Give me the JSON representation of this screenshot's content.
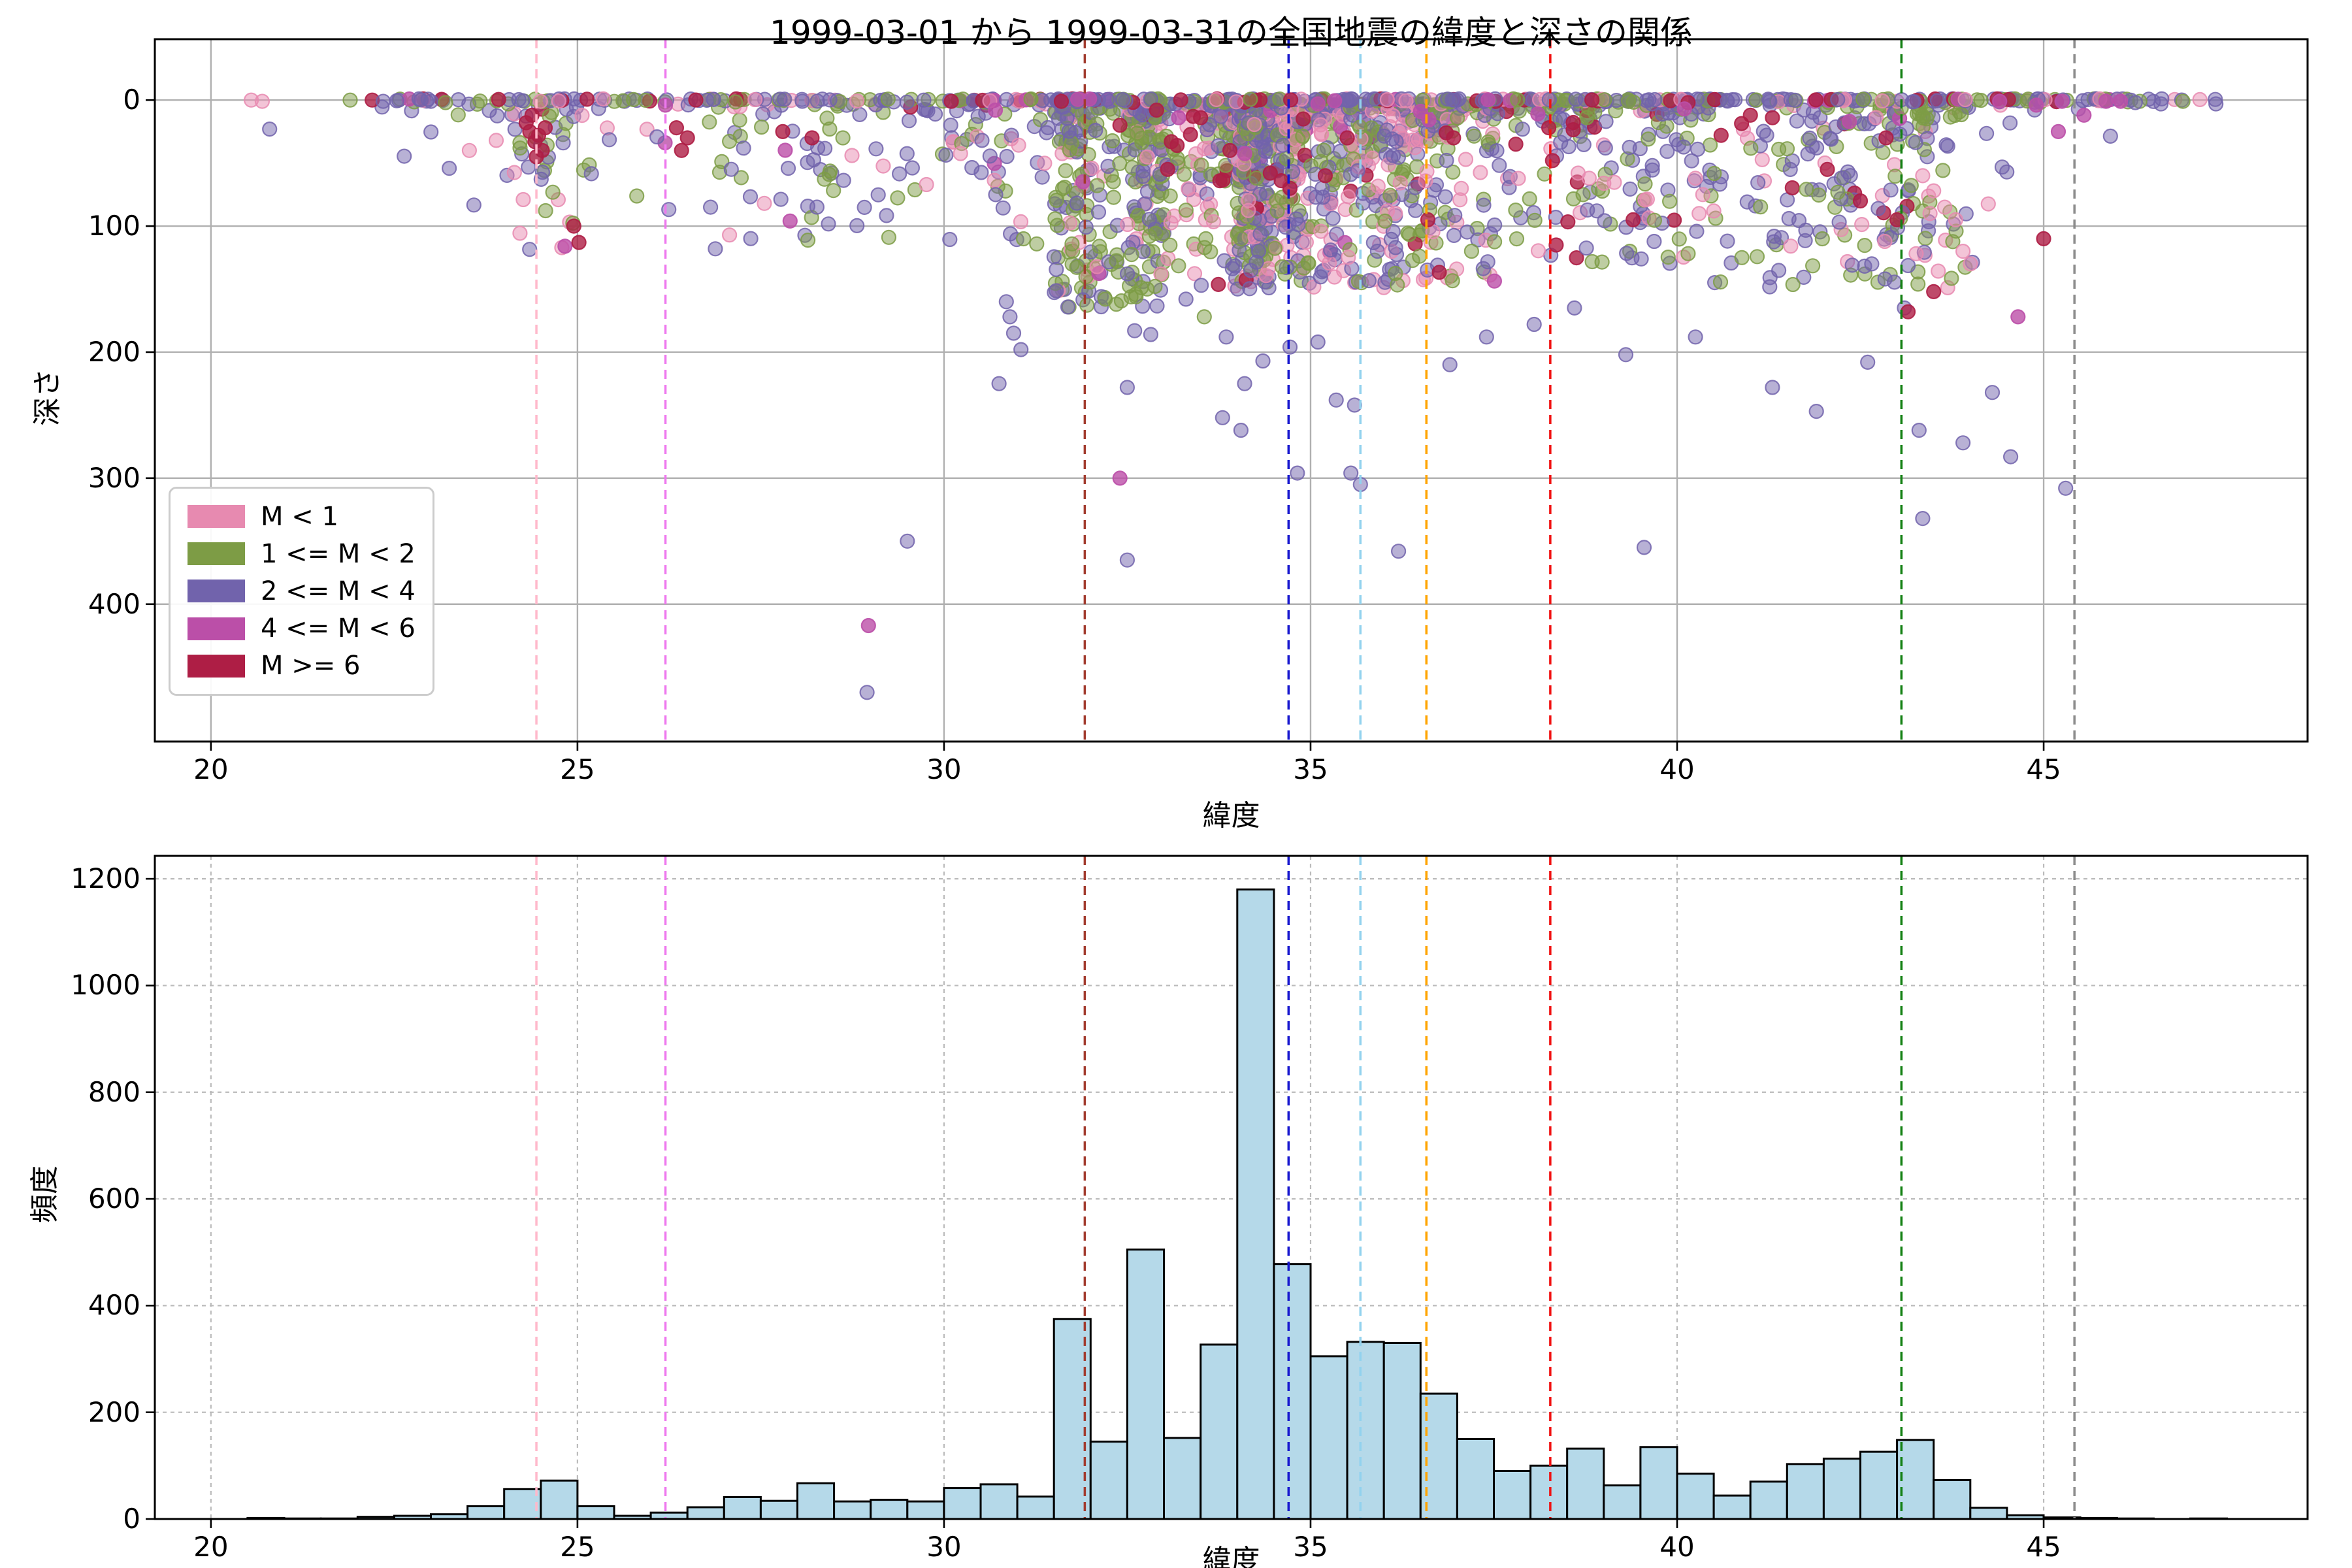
{
  "title": "1999-03-01 から 1999-03-31の全国地震の緯度と深さの関係",
  "axis": {
    "xlabel": "緯度",
    "ylabel_top": "深さ",
    "ylabel_bottom": "頻度"
  },
  "legend": {
    "items": [
      {
        "label": "M < 1",
        "key": "k",
        "color": "#e78ab0"
      },
      {
        "label": "1 <= M < 2",
        "key": "o",
        "color": "#7d9c45"
      },
      {
        "label": "2 <= M < 4",
        "key": "p",
        "color": "#7163ac"
      },
      {
        "label": "4 <= M < 6",
        "key": "m",
        "color": "#bb4fa8"
      },
      {
        "label": "M >= 6",
        "key": "c",
        "color": "#ae1e45"
      }
    ]
  },
  "style": {
    "bar_fill": "#b5d9e9",
    "bar_edge": "#000000",
    "grid_top_color": "#b0b0b0",
    "grid_bottom_color": "#bbbbbb",
    "spine_color": "#000000"
  },
  "chart_data": [
    {
      "type": "scatter",
      "title": "1999-03-01 から 1999-03-31の全国地震の緯度と深さの関係",
      "xlabel": "緯度",
      "ylabel": "深さ",
      "xlim": [
        19.235,
        48.6
      ],
      "depth_lim": [
        -48.3,
        509
      ],
      "y_inverted": true,
      "xticks": [
        20,
        25,
        30,
        35,
        40,
        45
      ],
      "yticks": [
        0,
        100,
        200,
        300,
        400
      ],
      "grid": "solid",
      "marker_radius": 10.5,
      "legend_position": "lower left",
      "vlines": [
        {
          "lat": 24.44,
          "color": "#ffb9cb",
          "name": "pink-dashed-line"
        },
        {
          "lat": 26.2,
          "color": "#ee79ee",
          "name": "violet-dashed-line"
        },
        {
          "lat": 31.92,
          "color": "#a23b2e",
          "name": "darkred-dashed-line"
        },
        {
          "lat": 34.7,
          "color": "#1717cf",
          "name": "blue-dashed-line"
        },
        {
          "lat": 35.68,
          "color": "#92d2ee",
          "name": "skyblue-dashed-line"
        },
        {
          "lat": 36.58,
          "color": "#ffa400",
          "name": "orange-dashed-line"
        },
        {
          "lat": 38.27,
          "color": "#f01212",
          "name": "red-dashed-line"
        },
        {
          "lat": 43.06,
          "color": "#128012",
          "name": "green-dashed-line"
        },
        {
          "lat": 45.42,
          "color": "#8c8c8c",
          "name": "gray-dashed-line"
        }
      ],
      "surface_row": {
        "segments": [
          {
            "lat_min": 22.5,
            "lat_max": 30.5,
            "n": 100
          },
          {
            "lat_min": 30.5,
            "lat_max": 44.5,
            "n": 300
          },
          {
            "lat_min": 44.5,
            "lat_max": 46.3,
            "n": 40
          },
          {
            "lat_min": 46.3,
            "lat_max": 47.45,
            "n": 8
          }
        ],
        "mix": {
          "k": 0.1,
          "o": 0.25,
          "p": 0.5,
          "m": 0.05,
          "c": 0.1
        }
      },
      "band_count_factor": 0.3,
      "depth_profiles": [
        {
          "lat_min": 19.0,
          "lat_max": 26.5,
          "d0": 3,
          "dmax": 120,
          "pow": 2.2
        },
        {
          "lat_min": 26.5,
          "lat_max": 29.5,
          "d0": 3,
          "dmax": 120,
          "pow": 2.0
        },
        {
          "lat_min": 29.5,
          "lat_max": 31.5,
          "d0": 3,
          "dmax": 115,
          "pow": 1.9
        },
        {
          "lat_min": 31.5,
          "lat_max": 33.0,
          "d0": 5,
          "dmax": 165,
          "pow": 1.7
        },
        {
          "lat_min": 33.0,
          "lat_max": 38.0,
          "d0": 3,
          "dmax": 150,
          "pow": 2.4
        },
        {
          "lat_min": 38.0,
          "lat_max": 40.5,
          "d0": 3,
          "dmax": 130,
          "pow": 2.2
        },
        {
          "lat_min": 40.5,
          "lat_max": 44.5,
          "d0": 4,
          "dmax": 150,
          "pow": 1.6
        },
        {
          "lat_min": 44.5,
          "lat_max": 48.0,
          "d0": 2,
          "dmax": 60,
          "pow": 2.0
        }
      ],
      "color_mixes": [
        {
          "lat_min": 19.0,
          "lat_max": 26.0,
          "mix": {
            "k": 0.18,
            "o": 0.22,
            "p": 0.55,
            "m": 0.03,
            "c": 0.02
          }
        },
        {
          "lat_min": 26.0,
          "lat_max": 31.5,
          "mix": {
            "k": 0.12,
            "o": 0.38,
            "p": 0.47,
            "m": 0.02,
            "c": 0.01
          }
        },
        {
          "lat_min": 31.5,
          "lat_max": 33.0,
          "mix": {
            "k": 0.15,
            "o": 0.45,
            "p": 0.38,
            "m": 0.01,
            "c": 0.01
          }
        },
        {
          "lat_min": 33.0,
          "lat_max": 38.0,
          "mix": {
            "k": 0.27,
            "o": 0.33,
            "p": 0.36,
            "m": 0.015,
            "c": 0.025
          }
        },
        {
          "lat_min": 38.0,
          "lat_max": 48.0,
          "mix": {
            "k": 0.1,
            "o": 0.33,
            "p": 0.52,
            "m": 0.01,
            "c": 0.04
          }
        }
      ],
      "explicit_points": [
        [
          20.55,
          0,
          "k"
        ],
        [
          20.7,
          1,
          "k"
        ],
        [
          21.9,
          0,
          "o"
        ],
        [
          22.2,
          0,
          "c"
        ],
        [
          22.35,
          1,
          "p"
        ],
        [
          23.0,
          1,
          "p"
        ],
        [
          23.2,
          2,
          "o"
        ],
        [
          30.85,
          160,
          "p"
        ],
        [
          30.9,
          172,
          "p"
        ],
        [
          30.95,
          185,
          "p"
        ],
        [
          31.05,
          198,
          "p"
        ],
        [
          30.75,
          225,
          "p"
        ],
        [
          32.2,
          158,
          "o"
        ],
        [
          32.35,
          162,
          "o"
        ],
        [
          32.6,
          183,
          "p"
        ],
        [
          32.82,
          186,
          "p"
        ],
        [
          32.5,
          228,
          "p"
        ],
        [
          32.4,
          300,
          "m"
        ],
        [
          32.5,
          365,
          "p"
        ],
        [
          29.5,
          350,
          "p"
        ],
        [
          28.97,
          417,
          "m"
        ],
        [
          28.95,
          470,
          "p"
        ],
        [
          33.3,
          158,
          "p"
        ],
        [
          33.55,
          172,
          "o"
        ],
        [
          33.85,
          188,
          "p"
        ],
        [
          34.1,
          225,
          "p"
        ],
        [
          34.35,
          207,
          "p"
        ],
        [
          33.8,
          252,
          "p"
        ],
        [
          34.05,
          262,
          "p"
        ],
        [
          34.72,
          196,
          "p"
        ],
        [
          35.1,
          192,
          "p"
        ],
        [
          35.35,
          238,
          "p"
        ],
        [
          35.6,
          242,
          "p"
        ],
        [
          34.82,
          296,
          "p"
        ],
        [
          35.55,
          296,
          "p"
        ],
        [
          35.68,
          305,
          "p"
        ],
        [
          36.2,
          358,
          "p"
        ],
        [
          39.55,
          355,
          "p"
        ],
        [
          36.9,
          210,
          "p"
        ],
        [
          37.4,
          188,
          "p"
        ],
        [
          38.05,
          178,
          "p"
        ],
        [
          38.6,
          165,
          "p"
        ],
        [
          39.3,
          202,
          "p"
        ],
        [
          40.25,
          188,
          "p"
        ],
        [
          41.3,
          228,
          "p"
        ],
        [
          41.9,
          247,
          "p"
        ],
        [
          42.6,
          208,
          "p"
        ],
        [
          43.3,
          262,
          "p"
        ],
        [
          43.9,
          272,
          "p"
        ],
        [
          44.3,
          232,
          "p"
        ],
        [
          43.35,
          332,
          "p"
        ],
        [
          44.55,
          283,
          "p"
        ],
        [
          45.3,
          308,
          "p"
        ],
        [
          43.1,
          165,
          "p"
        ],
        [
          43.5,
          152,
          "c"
        ],
        [
          43.15,
          168,
          "c"
        ],
        [
          44.65,
          172,
          "m"
        ],
        [
          24.83,
          116,
          "m"
        ],
        [
          24.95,
          100,
          "c"
        ],
        [
          25.02,
          113,
          "c"
        ],
        [
          24.3,
          18,
          "c"
        ],
        [
          24.35,
          25,
          "c"
        ],
        [
          24.42,
          33,
          "c"
        ],
        [
          24.47,
          28,
          "c"
        ],
        [
          24.52,
          40,
          "c"
        ],
        [
          24.56,
          22,
          "c"
        ],
        [
          24.44,
          45,
          "c"
        ],
        [
          24.38,
          12,
          "c"
        ],
        [
          26.35,
          22,
          "c"
        ],
        [
          26.5,
          30,
          "c"
        ],
        [
          26.42,
          40,
          "c"
        ],
        [
          30.1,
          1,
          "c"
        ],
        [
          31.6,
          1,
          "c"
        ],
        [
          32.9,
          8,
          "c"
        ],
        [
          33.1,
          33,
          "c"
        ],
        [
          33.18,
          36,
          "c"
        ],
        [
          33.4,
          13,
          "c"
        ],
        [
          33.5,
          14,
          "c"
        ],
        [
          33.05,
          55,
          "c"
        ],
        [
          34.45,
          58,
          "c"
        ],
        [
          34.6,
          64,
          "c"
        ],
        [
          34.72,
          70,
          "c"
        ],
        [
          35.2,
          60,
          "c"
        ],
        [
          36.85,
          26,
          "c"
        ],
        [
          36.95,
          30,
          "c"
        ],
        [
          36.6,
          95,
          "c"
        ],
        [
          38.25,
          22,
          "c"
        ],
        [
          38.3,
          48,
          "c"
        ],
        [
          38.35,
          115,
          "c"
        ],
        [
          40.15,
          2,
          "c"
        ],
        [
          40.6,
          28,
          "c"
        ],
        [
          41.0,
          12,
          "c"
        ],
        [
          41.3,
          14,
          "c"
        ],
        [
          42.05,
          55,
          "c"
        ],
        [
          42.5,
          80,
          "c"
        ],
        [
          43.0,
          95,
          "c"
        ],
        [
          42.85,
          30,
          "c"
        ],
        [
          45.0,
          110,
          "c"
        ],
        [
          39.4,
          95,
          "c"
        ],
        [
          37.8,
          35,
          "c"
        ],
        [
          35.5,
          30,
          "c"
        ],
        [
          34.9,
          15,
          "c"
        ],
        [
          33.9,
          40,
          "c"
        ],
        [
          32.4,
          20,
          "c"
        ],
        [
          28.2,
          30,
          "c"
        ],
        [
          27.8,
          25,
          "c"
        ],
        [
          26.2,
          4,
          "m"
        ],
        [
          27.9,
          96,
          "m"
        ],
        [
          30.7,
          8,
          "m"
        ],
        [
          33.2,
          14,
          "m"
        ],
        [
          35.1,
          3,
          "m"
        ],
        [
          36.5,
          9,
          "m"
        ],
        [
          38.1,
          11,
          "m"
        ],
        [
          40.1,
          7,
          "m"
        ],
        [
          42.35,
          17,
          "m"
        ],
        [
          44.9,
          4,
          "m"
        ],
        [
          45.25,
          1,
          "m"
        ],
        [
          45.55,
          12,
          "m"
        ],
        [
          45.85,
          1,
          "m"
        ],
        [
          44.4,
          1,
          "m"
        ],
        [
          45.2,
          25,
          "m"
        ],
        [
          46.05,
          1,
          "m"
        ],
        [
          40.25,
          62,
          "k"
        ],
        [
          40.35,
          75,
          "k"
        ],
        [
          40.5,
          88,
          "k"
        ],
        [
          40.3,
          90,
          "k"
        ],
        [
          38.65,
          58,
          "k"
        ],
        [
          38.8,
          62,
          "k"
        ],
        [
          39.0,
          66,
          "k"
        ],
        [
          43.35,
          60,
          "k"
        ],
        [
          43.5,
          72,
          "k"
        ],
        [
          43.65,
          85,
          "k"
        ],
        [
          43.8,
          95,
          "k"
        ],
        [
          43.9,
          120,
          "k"
        ],
        [
          44.0,
          130,
          "k"
        ],
        [
          43.45,
          90,
          "k"
        ],
        [
          46.25,
          2,
          "p"
        ],
        [
          46.6,
          3,
          "p"
        ],
        [
          47.35,
          3,
          "p"
        ],
        [
          46.9,
          1,
          "o"
        ]
      ]
    },
    {
      "type": "bar",
      "xlabel": "緯度",
      "ylabel": "頻度",
      "xlim": [
        19.235,
        48.6
      ],
      "ylim": [
        0,
        1243
      ],
      "xticks": [
        20,
        25,
        30,
        35,
        40,
        45
      ],
      "yticks": [
        0,
        200,
        400,
        600,
        800,
        1000,
        1200
      ],
      "grid": "dashed",
      "bin_start": 20.5,
      "bin_width": 0.5,
      "values": [
        2,
        1,
        1,
        4,
        6,
        9,
        24,
        56,
        72,
        24,
        6,
        12,
        22,
        41,
        34,
        67,
        33,
        36,
        33,
        58,
        65,
        42,
        375,
        145,
        505,
        152,
        327,
        1180,
        478,
        305,
        332,
        330,
        235,
        150,
        90,
        100,
        132,
        63,
        135,
        85,
        44,
        70,
        103,
        113,
        126,
        148,
        73,
        21,
        7,
        3,
        2,
        1,
        0,
        1
      ]
    }
  ]
}
